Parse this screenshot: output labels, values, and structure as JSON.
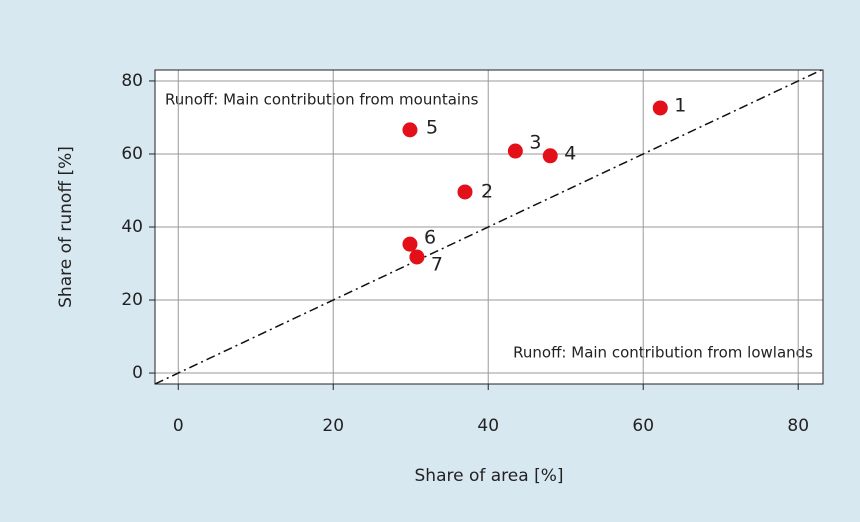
{
  "chart_data": {
    "type": "scatter",
    "xlabel": "Share of area [%]",
    "ylabel": "Share of runoff [%]",
    "point_labels": [
      "1",
      "2",
      "3",
      "4",
      "5",
      "6",
      "7"
    ],
    "x": [
      62.2,
      37,
      43.5,
      48,
      29.9,
      29.9,
      30.8
    ],
    "y": [
      72.6,
      49.6,
      60.8,
      59.5,
      66.6,
      35.3,
      31.8
    ],
    "color": "#e3101a",
    "xlim": [
      -3,
      83.2
    ],
    "ylim": [
      -3,
      83
    ],
    "xticks": [
      0,
      20,
      40,
      60,
      80
    ],
    "yticks": [
      0,
      20,
      40,
      60,
      80
    ],
    "grid": true,
    "identity_line": true,
    "annotations": [
      "Runoff: Main contribution from mountains",
      "Runoff: Main contribution from lowlands"
    ]
  }
}
